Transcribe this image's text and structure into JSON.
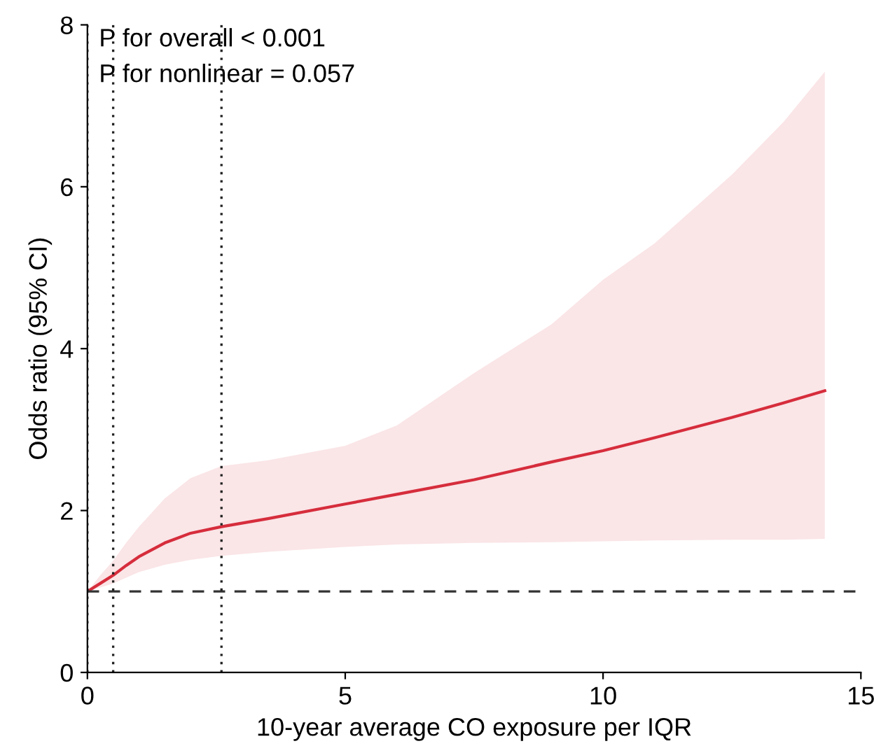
{
  "chart_data": {
    "type": "line",
    "xlabel": "10-year average CO exposure per IQR",
    "ylabel": "Odds ratio (95% CI)",
    "annotations": [
      "P for overall < 0.001",
      "P for nonlinear = 0.057"
    ],
    "series": [
      {
        "color": "#d62d3c",
        "x": [
          0,
          0.25,
          0.5,
          0.75,
          1,
          1.5,
          2,
          2.6,
          3.5,
          5,
          6,
          7.5,
          9,
          10,
          11,
          12.5,
          13.5,
          14.3
        ],
        "values": [
          1,
          1.1,
          1.2,
          1.32,
          1.43,
          1.6,
          1.72,
          1.8,
          1.9,
          2.08,
          2.2,
          2.38,
          2.6,
          2.74,
          2.9,
          3.15,
          3.33,
          3.48
        ],
        "lower": [
          1,
          1.05,
          1.1,
          1.17,
          1.24,
          1.33,
          1.39,
          1.44,
          1.49,
          1.55,
          1.58,
          1.6,
          1.61,
          1.62,
          1.63,
          1.64,
          1.64,
          1.65
        ],
        "upper": [
          1,
          1.2,
          1.38,
          1.6,
          1.8,
          2.15,
          2.4,
          2.55,
          2.62,
          2.8,
          3.05,
          3.7,
          4.3,
          4.85,
          5.3,
          6.15,
          6.8,
          7.42
        ]
      }
    ],
    "ref_lines": [
      {
        "axis": "y",
        "value": 1,
        "line_style": "dashed",
        "color": "#333333"
      },
      {
        "axis": "x",
        "value": 0,
        "line_style": "dotted",
        "color": "#222222"
      },
      {
        "axis": "x",
        "value": 0.5,
        "line_style": "dotted",
        "color": "#222222"
      },
      {
        "axis": "x",
        "value": 2.6,
        "line_style": "dotted",
        "color": "#222222"
      }
    ],
    "xlim": [
      0,
      15
    ],
    "xticks": [
      0,
      5,
      10,
      15
    ],
    "ylim": [
      0,
      8
    ],
    "yticks": [
      0,
      2,
      4,
      6,
      8
    ],
    "grid": false,
    "legend": false
  }
}
